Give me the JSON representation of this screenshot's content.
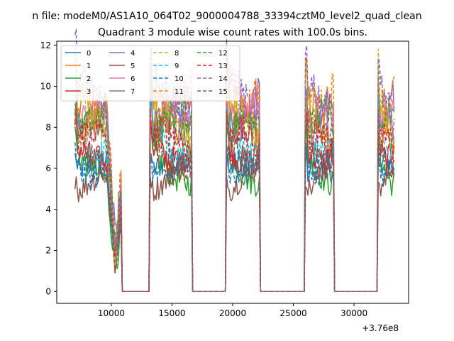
{
  "chart_data": {
    "type": "line",
    "suptitle": "n file: modeM0/AS1A10_064T02_9000004788_33394cztM0_level2_quad_clean",
    "title": "Quadrant 3 module wise count rates with 100.0s bins.",
    "xlabel": "",
    "ylabel": "",
    "x_offset_label": "+3.76e8",
    "xlim": [
      5500,
      34500
    ],
    "ylim": [
      -0.58,
      12.2
    ],
    "x_ticks": [
      10000,
      15000,
      20000,
      25000,
      30000
    ],
    "x_tick_labels": [
      "10000",
      "15000",
      "20000",
      "25000",
      "30000"
    ],
    "y_ticks": [
      0,
      2,
      4,
      6,
      8,
      10,
      12
    ],
    "y_tick_labels": [
      "0",
      "2",
      "4",
      "6",
      "8",
      "10",
      "12"
    ],
    "grid": false,
    "legend_position": "top-left",
    "legend_columns": 4,
    "bin_size_s": 100,
    "segments": [
      {
        "start": 7000,
        "end": 10800
      },
      {
        "start": 13200,
        "end": 16600
      },
      {
        "start": 19500,
        "end": 22200
      },
      {
        "start": 26000,
        "end": 28300
      },
      {
        "start": 32000,
        "end": 33300
      }
    ],
    "series": [
      {
        "name": "0",
        "level": 5.7,
        "color": "#1f77b4",
        "dashed": false
      },
      {
        "name": "1",
        "level": 8.3,
        "color": "#ff7f0e",
        "dashed": false
      },
      {
        "name": "2",
        "level": 6.0,
        "color": "#2ca02c",
        "dashed": false
      },
      {
        "name": "3",
        "level": 7.2,
        "color": "#d62728",
        "dashed": false
      },
      {
        "name": "4",
        "level": 9.0,
        "color": "#9467bd",
        "dashed": false
      },
      {
        "name": "5",
        "level": 5.5,
        "color": "#8c564b",
        "dashed": false
      },
      {
        "name": "6",
        "level": 8.0,
        "color": "#e377c2",
        "dashed": false
      },
      {
        "name": "7",
        "level": 7.4,
        "color": "#7f7f7f",
        "dashed": false
      },
      {
        "name": "8",
        "level": 8.6,
        "color": "#bcbd22",
        "dashed": true
      },
      {
        "name": "9",
        "level": 7.6,
        "color": "#17becf",
        "dashed": true
      },
      {
        "name": "10",
        "level": 6.4,
        "color": "#1f77b4",
        "dashed": true
      },
      {
        "name": "11",
        "level": 8.8,
        "color": "#ff7f0e",
        "dashed": true
      },
      {
        "name": "12",
        "level": 7.8,
        "color": "#2ca02c",
        "dashed": true
      },
      {
        "name": "13",
        "level": 7.0,
        "color": "#d62728",
        "dashed": true
      },
      {
        "name": "14",
        "level": 9.2,
        "color": "#9467bd",
        "dashed": true
      },
      {
        "name": "15",
        "level": 6.8,
        "color": "#8c564b",
        "dashed": true
      }
    ]
  }
}
